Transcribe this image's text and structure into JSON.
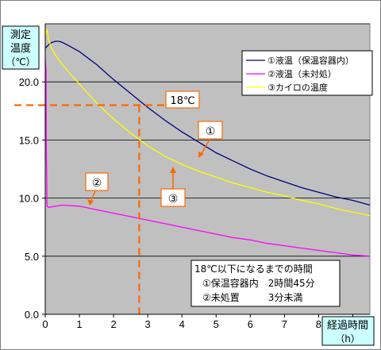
{
  "chart_data": {
    "type": "line",
    "title": "",
    "ylabel": [
      "測定",
      "温度",
      "（℃）"
    ],
    "xlabel": [
      "経過時間",
      "（h）"
    ],
    "xlim": [
      0,
      9.5
    ],
    "ylim": [
      0,
      25
    ],
    "xticks": [
      "0",
      "1",
      "2",
      "3",
      "4",
      "5",
      "6",
      "7",
      "8",
      "9"
    ],
    "yticks": [
      "0.0",
      "5.0",
      "10.0",
      "15.0",
      "20.0"
    ],
    "grid": "horizontal",
    "legend_position": "top-right",
    "colors": {
      "plot_bg": "#c0c0c0",
      "series1": "#000080",
      "series2": "#ff00ff",
      "series3": "#ffff00",
      "marker": "#ff6600"
    },
    "series": [
      {
        "name": "①液温（保温容器内）",
        "x": [
          0,
          0.1,
          0.2,
          0.3,
          0.4,
          0.5,
          0.7,
          1,
          1.5,
          2,
          2.5,
          3,
          3.5,
          4,
          4.5,
          5,
          5.5,
          6,
          6.5,
          7,
          7.5,
          8,
          8.5,
          9,
          9.5
        ],
        "y": [
          22.9,
          23.2,
          23.4,
          23.5,
          23.5,
          23.4,
          23.1,
          22.6,
          21.5,
          20.2,
          19,
          17.8,
          16.7,
          15.7,
          14.8,
          13.9,
          13.2,
          12.5,
          11.9,
          11.4,
          10.9,
          10.5,
          10.1,
          9.8,
          9.4
        ]
      },
      {
        "name": "②液温（未対処）",
        "x": [
          0,
          0.02,
          0.03,
          0.05,
          0.1,
          0.5,
          1,
          1.5,
          2,
          2.5,
          3,
          3.5,
          4,
          4.5,
          5,
          5.5,
          6,
          6.5,
          7,
          7.5,
          8,
          8.5,
          9,
          9.5
        ],
        "y": [
          22,
          21,
          15,
          9.3,
          9.2,
          9.4,
          9.3,
          9,
          8.7,
          8.4,
          8.1,
          7.8,
          7.5,
          7.2,
          6.9,
          6.6,
          6.4,
          6.1,
          5.9,
          5.7,
          5.5,
          5.3,
          5.1,
          5
        ]
      },
      {
        "name": "③カイロの温度",
        "x": [
          0,
          0.05,
          0.1,
          0.2,
          0.3,
          0.5,
          0.7,
          1,
          1.5,
          2,
          2.5,
          3,
          3.5,
          4,
          4.5,
          5,
          5.5,
          6,
          6.5,
          7,
          7.5,
          8,
          8.5,
          9,
          9.5
        ],
        "y": [
          24,
          24.5,
          23.6,
          22.8,
          22.3,
          21.5,
          20.8,
          19.8,
          18.2,
          16.8,
          15.6,
          14.5,
          13.6,
          12.9,
          12.3,
          11.8,
          11.3,
          10.9,
          10.5,
          10.2,
          9.8,
          9.5,
          9.1,
          8.8,
          8.5
        ]
      }
    ],
    "annotations": {
      "threshold_label": "18℃",
      "threshold_y": 18,
      "threshold_x": 2.75,
      "callout1": "①",
      "callout2": "②",
      "callout3": "③",
      "info_lines": [
        "18℃以下になるまでの時間",
        "①保温容器内　2時間45分",
        "②未処置　　　3分未満"
      ]
    }
  }
}
